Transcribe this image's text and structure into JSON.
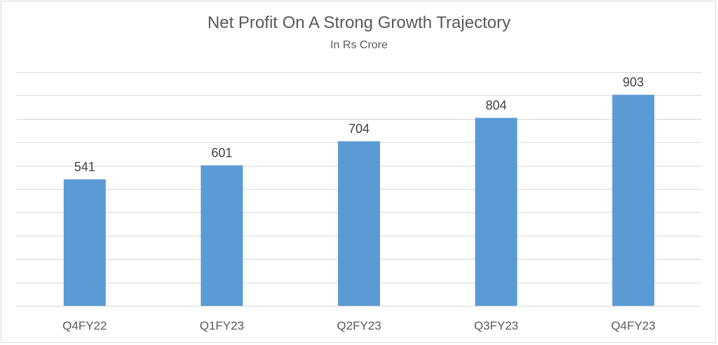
{
  "chart_data": {
    "type": "bar",
    "title": "Net Profit On A Strong Growth Trajectory",
    "subtitle": "In Rs Crore",
    "categories": [
      "Q4FY22",
      "Q1FY23",
      "Q2FY23",
      "Q3FY23",
      "Q4FY23"
    ],
    "series": [
      {
        "values": [
          541,
          601,
          704,
          804,
          903
        ]
      }
    ],
    "ylim": [
      0,
      1000
    ],
    "grid": true,
    "data_labels": true,
    "colors": {
      "bar": "#5b9bd5",
      "grid": "#d9d9d9"
    }
  }
}
